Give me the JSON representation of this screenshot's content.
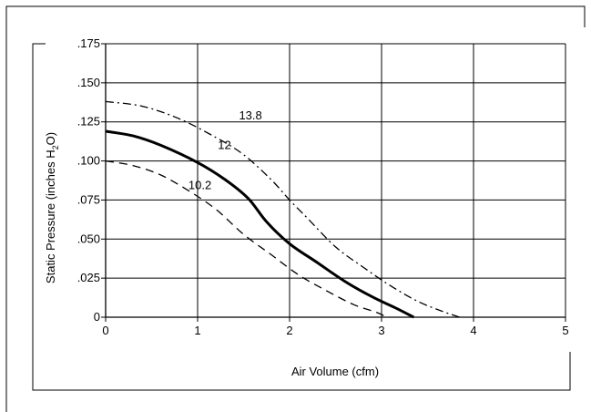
{
  "chart_data": {
    "type": "line",
    "title": "",
    "xlabel": "Air Volume (cfm)",
    "ylabel": {
      "prefix": "Static Pressure (inches H",
      "sub": "2",
      "suffix": "O)"
    },
    "xlim": [
      0,
      5
    ],
    "ylim": [
      0,
      0.175
    ],
    "x_ticks": [
      {
        "v": 0,
        "label": "0"
      },
      {
        "v": 1,
        "label": "1"
      },
      {
        "v": 2,
        "label": "2"
      },
      {
        "v": 3,
        "label": "3"
      },
      {
        "v": 4,
        "label": "4"
      },
      {
        "v": 5,
        "label": "5"
      }
    ],
    "y_ticks": [
      {
        "v": 0,
        "label": "0"
      },
      {
        "v": 0.025,
        "label": ".025"
      },
      {
        "v": 0.05,
        "label": ".050"
      },
      {
        "v": 0.075,
        "label": ".075"
      },
      {
        "v": 0.1,
        "label": ".100"
      },
      {
        "v": 0.125,
        "label": ".125"
      },
      {
        "v": 0.15,
        "label": ".150"
      },
      {
        "v": 0.175,
        "label": ".175"
      }
    ],
    "x_grid": [
      1,
      2,
      3,
      4
    ],
    "y_grid": [
      0.025,
      0.05,
      0.075,
      0.1,
      0.125,
      0.15
    ],
    "series": [
      {
        "name": "13.8",
        "style": "dashdot",
        "width": 1.3,
        "label_at": [
          1.45,
          0.1265
        ],
        "points": [
          [
            0,
            0.138
          ],
          [
            0.4,
            0.135
          ],
          [
            0.8,
            0.127
          ],
          [
            1.2,
            0.115
          ],
          [
            1.5,
            0.104
          ],
          [
            1.8,
            0.088
          ],
          [
            2.0,
            0.075
          ],
          [
            2.2,
            0.063
          ],
          [
            2.5,
            0.045
          ],
          [
            2.8,
            0.032
          ],
          [
            3.1,
            0.02
          ],
          [
            3.4,
            0.01
          ],
          [
            3.65,
            0.004
          ],
          [
            3.85,
            0
          ]
        ]
      },
      {
        "name": "12",
        "style": "solid",
        "width": 3,
        "label_at": [
          1.22,
          0.1075
        ],
        "points": [
          [
            0,
            0.119
          ],
          [
            0.3,
            0.116
          ],
          [
            0.6,
            0.11
          ],
          [
            1.0,
            0.099
          ],
          [
            1.3,
            0.088
          ],
          [
            1.55,
            0.076
          ],
          [
            1.75,
            0.061
          ],
          [
            2.0,
            0.047
          ],
          [
            2.3,
            0.035
          ],
          [
            2.6,
            0.023
          ],
          [
            2.9,
            0.013
          ],
          [
            3.15,
            0.006
          ],
          [
            3.35,
            0
          ]
        ]
      },
      {
        "name": "10.2",
        "style": "dashed",
        "width": 1.3,
        "label_at": [
          0.9,
          0.082
        ],
        "points": [
          [
            0,
            0.1
          ],
          [
            0.3,
            0.097
          ],
          [
            0.6,
            0.091
          ],
          [
            0.9,
            0.081
          ],
          [
            1.2,
            0.069
          ],
          [
            1.5,
            0.053
          ],
          [
            1.8,
            0.04
          ],
          [
            2.1,
            0.027
          ],
          [
            2.4,
            0.017
          ],
          [
            2.7,
            0.008
          ],
          [
            2.95,
            0.003
          ],
          [
            3.05,
            0
          ]
        ]
      }
    ]
  }
}
